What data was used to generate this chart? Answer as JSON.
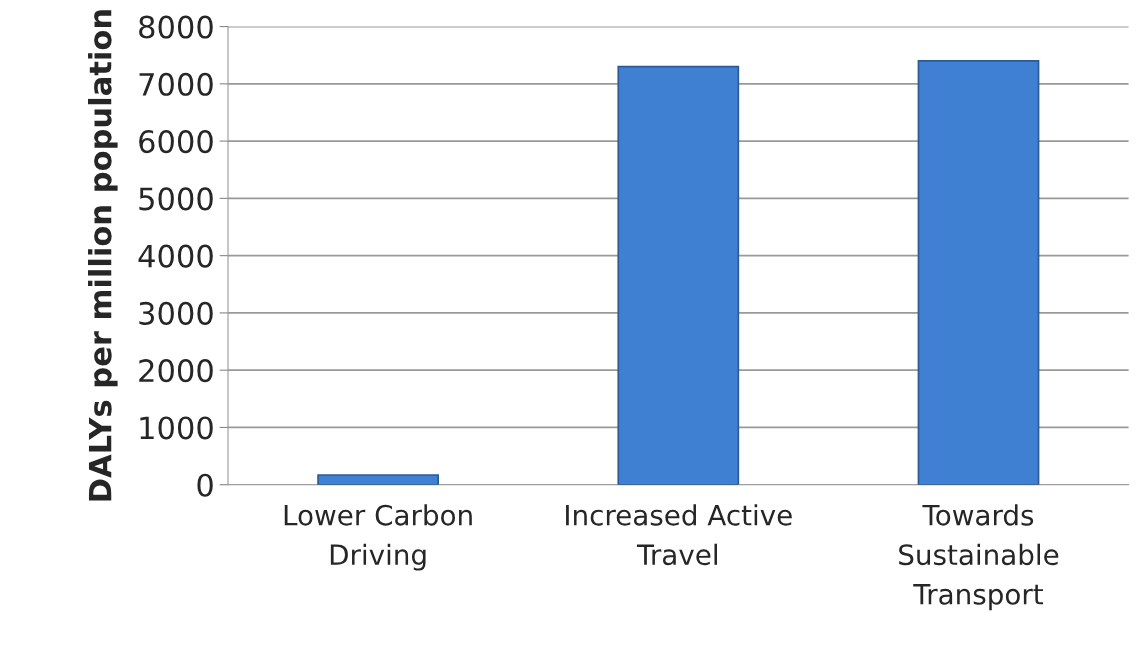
{
  "chart_data": {
    "type": "bar",
    "ylabel": "DALYs per million population",
    "categories": [
      "Lower Carbon Driving",
      "Increased Active Travel",
      "Towards Sustainable Transport"
    ],
    "values": [
      170,
      7300,
      7400
    ],
    "color": "#3f80d2",
    "ylim": [
      0,
      8000
    ],
    "yticks": [
      0,
      1000,
      2000,
      3000,
      4000,
      5000,
      6000,
      7000,
      8000
    ],
    "grid": "y"
  }
}
